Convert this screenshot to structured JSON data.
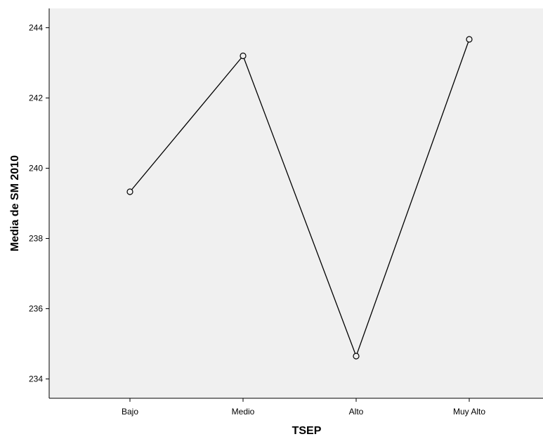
{
  "chart_data": {
    "type": "line",
    "xlabel": "TSEP",
    "ylabel": "Media de SM 2010",
    "categories": [
      "Bajo",
      "Medio",
      "Alto",
      "Muy Alto"
    ],
    "series": [
      {
        "values": [
          239.33,
          243.2,
          234.65,
          243.67
        ],
        "markers": "open-circle"
      }
    ],
    "ylim": [
      233.45,
      244.55
    ],
    "yticks": [
      234,
      236,
      238,
      240,
      242,
      244
    ],
    "ytick_labels": [
      "234",
      "236",
      "238",
      "240",
      "242",
      "244"
    ],
    "grid": false,
    "legend": "none",
    "colors": {
      "plot_background": "#f0f0f0",
      "line": "#000000",
      "axis": "#000000"
    }
  }
}
